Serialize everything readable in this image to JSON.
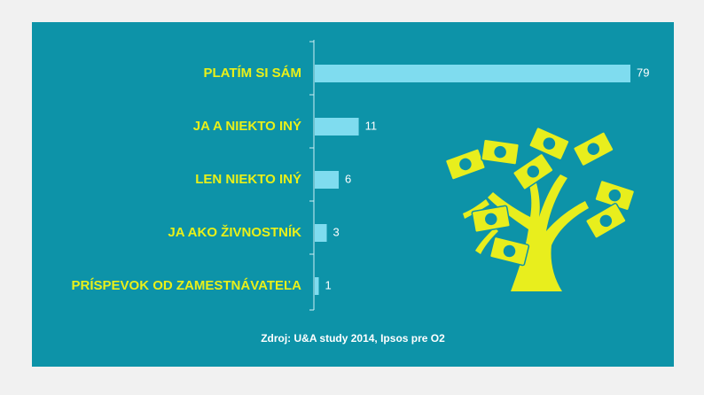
{
  "colors": {
    "background": "#0d93a8",
    "bar": "#7fdcef",
    "label": "#e9f019",
    "value": "#ffffff",
    "icon": "#e8ee1d"
  },
  "source": "Zdroj: U&A study 2014, Ipsos pre O2",
  "icon": "money-tree-icon",
  "chart_data": {
    "type": "bar",
    "orientation": "horizontal",
    "categories": [
      "PLATÍM SI SÁM",
      "JA A NIEKTO INÝ",
      "LEN NIEKTO INÝ",
      "JA AKO ŽIVNOSTNÍK",
      "PRÍSPEVOK OD ZAMESTNÁVATEĽA"
    ],
    "values": [
      79,
      11,
      6,
      3,
      1
    ],
    "value_labels": [
      "79",
      "11",
      "6",
      "3",
      "1"
    ],
    "xlim": [
      0,
      79
    ],
    "grid": false,
    "legend": "none"
  }
}
